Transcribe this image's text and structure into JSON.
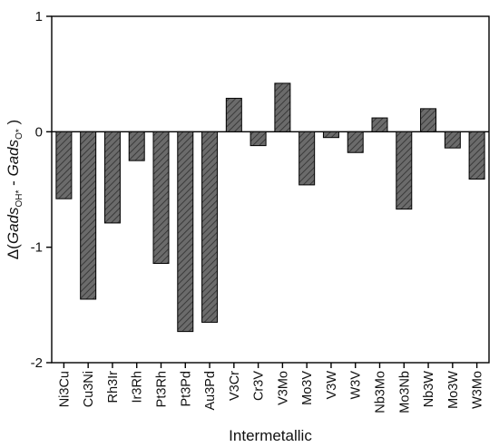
{
  "chart_data": {
    "type": "bar",
    "xlabel": "Intermetallic",
    "ylabel": {
      "prefix": "Δ(",
      "term1": "Gads",
      "sub1": "OH*",
      "minus": " - ",
      "term2": "Gads",
      "sub2": "O*",
      "suffix": " )"
    },
    "ylim": [
      -2,
      1
    ],
    "yticks": [
      {
        "value": 1,
        "label": "1"
      },
      {
        "value": 0,
        "label": "0"
      },
      {
        "value": -1,
        "label": "-1"
      },
      {
        "value": -2,
        "label": "-2"
      }
    ],
    "categories": [
      "Ni3Cu",
      "Cu3Ni",
      "Rh3Ir",
      "Ir3Rh",
      "Pt3Rh",
      "Pt3Pd",
      "Au3Pd",
      "V3Cr",
      "Cr3V",
      "V3Mo",
      "Mo3V",
      "V3W",
      "W3V",
      "Nb3Mo",
      "Mo3Nb",
      "Nb3W",
      "Mo3W",
      "W3Mo"
    ],
    "values": [
      -0.58,
      -1.45,
      -0.79,
      -0.25,
      -1.14,
      -1.73,
      -1.65,
      0.29,
      -0.12,
      0.42,
      -0.46,
      -0.05,
      -0.18,
      0.12,
      -0.67,
      0.2,
      -0.14,
      -0.41
    ],
    "grid": false,
    "bar_fill": "hatched dark gray",
    "colors": {
      "bar_fill": "#6b6b6b",
      "hatch": "#3a3a3a",
      "axis": "#000000"
    }
  }
}
